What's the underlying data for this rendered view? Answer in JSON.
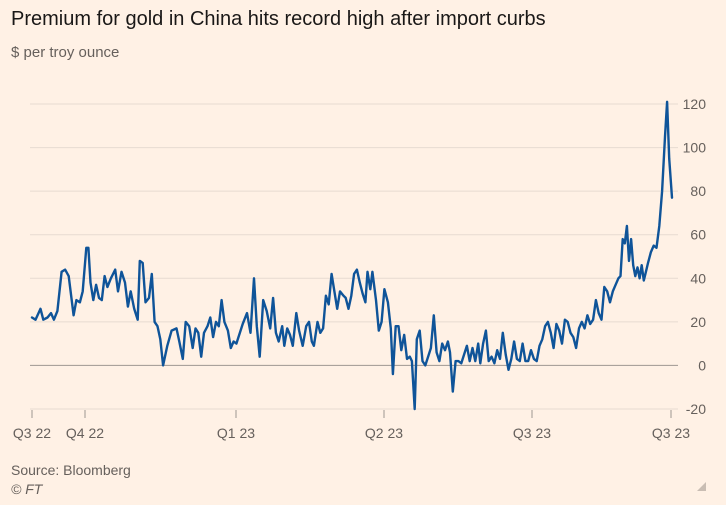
{
  "chart_data": {
    "type": "line",
    "title": "Premium for gold in China hits record high after import curbs",
    "subtitle": "$ per troy ounce",
    "ylim": [
      -20,
      120
    ],
    "y_ticks": [
      -20,
      0,
      20,
      40,
      60,
      80,
      100,
      120
    ],
    "x_ticks": [
      {
        "x": 0,
        "label": "Q3 22"
      },
      {
        "x": 11,
        "label": "Q4 22"
      },
      {
        "x": 44,
        "label": "Q1 23"
      },
      {
        "x": 77,
        "label": "Q2 23"
      },
      {
        "x": 110,
        "label": "Q3 23"
      },
      {
        "x": 139,
        "label": "Q3 23"
      }
    ],
    "grid": true,
    "series": [
      {
        "color": "#0f5499",
        "values": [
          [
            0.0,
            22
          ],
          [
            0.5,
            21
          ],
          [
            1.2,
            26
          ],
          [
            1.6,
            21
          ],
          [
            2.2,
            22
          ],
          [
            2.7,
            24
          ],
          [
            3.1,
            21
          ],
          [
            3.6,
            25
          ],
          [
            4.2,
            43
          ],
          [
            4.7,
            44
          ],
          [
            5.2,
            41
          ],
          [
            5.9,
            23
          ],
          [
            6.3,
            30
          ],
          [
            6.8,
            29
          ],
          [
            7.2,
            34
          ],
          [
            7.7,
            54
          ],
          [
            8.0,
            54
          ],
          [
            8.3,
            38
          ],
          [
            8.7,
            30
          ],
          [
            9.1,
            37
          ],
          [
            9.5,
            31
          ],
          [
            9.9,
            30
          ],
          [
            10.3,
            41
          ],
          [
            10.7,
            36
          ],
          [
            11.2,
            40
          ],
          [
            11.8,
            44
          ],
          [
            12.2,
            34
          ],
          [
            12.7,
            43
          ],
          [
            13.2,
            38
          ],
          [
            13.6,
            27
          ],
          [
            14.0,
            34
          ],
          [
            14.5,
            26
          ],
          [
            15.0,
            21
          ],
          [
            15.3,
            48
          ],
          [
            15.7,
            47
          ],
          [
            16.1,
            29
          ],
          [
            16.6,
            31
          ],
          [
            17.0,
            42
          ],
          [
            17.4,
            20
          ],
          [
            17.8,
            18
          ],
          [
            18.2,
            12
          ],
          [
            18.6,
            0
          ],
          [
            19.2,
            9
          ],
          [
            19.8,
            16
          ],
          [
            20.5,
            17
          ],
          [
            20.9,
            11
          ],
          [
            21.4,
            3
          ],
          [
            21.8,
            20
          ],
          [
            22.3,
            18
          ],
          [
            22.8,
            8
          ],
          [
            23.2,
            17
          ],
          [
            23.6,
            15
          ],
          [
            24.0,
            4
          ],
          [
            24.4,
            15
          ],
          [
            24.9,
            18
          ],
          [
            25.3,
            22
          ],
          [
            25.7,
            13
          ],
          [
            26.1,
            20
          ],
          [
            26.5,
            18
          ],
          [
            26.9,
            30
          ],
          [
            27.3,
            20
          ],
          [
            27.8,
            16
          ],
          [
            28.2,
            8
          ],
          [
            28.6,
            11
          ],
          [
            29.0,
            10
          ],
          [
            29.4,
            14
          ],
          [
            29.9,
            19
          ],
          [
            30.5,
            24
          ],
          [
            31.0,
            15
          ],
          [
            31.5,
            40
          ],
          [
            31.9,
            18
          ],
          [
            32.3,
            4
          ],
          [
            32.8,
            30
          ],
          [
            33.3,
            25
          ],
          [
            33.8,
            17
          ],
          [
            34.2,
            31
          ],
          [
            34.6,
            15
          ],
          [
            35.0,
            11
          ],
          [
            35.5,
            18
          ],
          [
            35.8,
            9
          ],
          [
            36.2,
            17
          ],
          [
            36.6,
            14
          ],
          [
            37.0,
            9
          ],
          [
            37.5,
            24
          ],
          [
            37.9,
            16
          ],
          [
            38.4,
            9
          ],
          [
            38.9,
            18
          ],
          [
            39.3,
            20
          ],
          [
            39.7,
            11
          ],
          [
            40.0,
            9
          ],
          [
            40.5,
            20
          ],
          [
            40.9,
            15
          ],
          [
            41.3,
            17
          ],
          [
            41.7,
            32
          ],
          [
            42.1,
            28
          ],
          [
            42.5,
            42
          ],
          [
            42.9,
            34
          ],
          [
            43.3,
            26
          ],
          [
            43.7,
            34
          ],
          [
            44.2,
            32
          ],
          [
            44.5,
            31
          ],
          [
            44.9,
            26
          ],
          [
            45.3,
            32
          ],
          [
            45.7,
            42
          ],
          [
            46.1,
            44
          ],
          [
            46.5,
            38
          ],
          [
            46.9,
            33
          ],
          [
            47.3,
            29
          ],
          [
            47.6,
            43
          ],
          [
            48.0,
            35
          ],
          [
            48.3,
            43
          ],
          [
            48.8,
            30
          ],
          [
            49.2,
            16
          ],
          [
            49.6,
            20
          ],
          [
            50.0,
            35
          ],
          [
            50.5,
            29
          ],
          [
            50.9,
            17
          ],
          [
            51.2,
            -4
          ],
          [
            51.6,
            18
          ],
          [
            52.0,
            18
          ],
          [
            52.4,
            7
          ],
          [
            52.8,
            14
          ],
          [
            53.2,
            3
          ],
          [
            53.6,
            4
          ],
          [
            53.9,
            2
          ],
          [
            54.3,
            -20
          ],
          [
            54.6,
            12
          ],
          [
            55.0,
            16
          ],
          [
            55.4,
            2
          ],
          [
            55.8,
            0
          ],
          [
            56.2,
            4
          ],
          [
            56.6,
            8
          ],
          [
            57.0,
            23
          ],
          [
            57.4,
            6
          ],
          [
            57.8,
            2
          ],
          [
            58.2,
            10
          ],
          [
            58.6,
            7
          ],
          [
            59.0,
            11
          ],
          [
            59.3,
            6
          ],
          [
            59.7,
            -12
          ],
          [
            60.1,
            2
          ],
          [
            60.5,
            2
          ],
          [
            60.9,
            1
          ],
          [
            61.3,
            5
          ],
          [
            61.7,
            9
          ],
          [
            62.1,
            2
          ],
          [
            62.5,
            8
          ],
          [
            62.9,
            2
          ],
          [
            63.3,
            10
          ],
          [
            63.6,
            1
          ],
          [
            64.0,
            10
          ],
          [
            64.4,
            16
          ],
          [
            64.8,
            2
          ],
          [
            65.2,
            4
          ],
          [
            65.6,
            1
          ],
          [
            66.0,
            7
          ],
          [
            66.4,
            3
          ],
          [
            66.8,
            15
          ],
          [
            67.2,
            5
          ],
          [
            67.6,
            -2
          ],
          [
            68.0,
            3
          ],
          [
            68.4,
            11
          ],
          [
            68.8,
            3
          ],
          [
            69.2,
            2
          ],
          [
            69.6,
            10
          ],
          [
            70.0,
            2
          ],
          [
            70.4,
            2
          ],
          [
            70.8,
            7
          ],
          [
            71.2,
            3
          ],
          [
            71.6,
            2
          ],
          [
            72.0,
            9
          ],
          [
            72.4,
            12
          ],
          [
            72.8,
            18
          ],
          [
            73.2,
            20
          ],
          [
            73.6,
            15
          ],
          [
            74.0,
            8
          ],
          [
            74.4,
            19
          ],
          [
            74.8,
            16
          ],
          [
            75.2,
            10
          ],
          [
            75.6,
            21
          ],
          [
            76.0,
            20
          ],
          [
            76.4,
            15
          ],
          [
            76.8,
            13
          ],
          [
            77.2,
            8
          ],
          [
            77.6,
            17
          ],
          [
            78.0,
            20
          ],
          [
            78.4,
            17
          ],
          [
            78.8,
            23
          ],
          [
            79.2,
            19
          ],
          [
            79.6,
            21
          ],
          [
            80.0,
            30
          ],
          [
            80.4,
            24
          ],
          [
            80.8,
            21
          ],
          [
            81.2,
            36
          ],
          [
            81.6,
            34
          ],
          [
            82.0,
            29
          ],
          [
            82.4,
            34
          ],
          [
            82.8,
            37
          ],
          [
            83.2,
            40
          ],
          [
            83.5,
            41
          ],
          [
            83.8,
            58
          ],
          [
            84.1,
            56
          ],
          [
            84.4,
            64
          ],
          [
            84.7,
            48
          ],
          [
            85.0,
            58
          ],
          [
            85.3,
            46
          ],
          [
            85.6,
            41
          ],
          [
            85.9,
            45
          ],
          [
            86.2,
            40
          ],
          [
            86.5,
            46
          ],
          [
            86.8,
            39
          ],
          [
            87.1,
            43
          ],
          [
            87.4,
            47
          ],
          [
            87.8,
            52
          ],
          [
            88.2,
            55
          ],
          [
            88.6,
            54
          ],
          [
            89.0,
            64
          ],
          [
            89.4,
            80
          ],
          [
            89.8,
            105
          ],
          [
            90.1,
            121
          ],
          [
            90.4,
            95
          ],
          [
            90.8,
            77
          ]
        ]
      }
    ],
    "source": "Source: Bloomberg",
    "credit": "© FT"
  }
}
